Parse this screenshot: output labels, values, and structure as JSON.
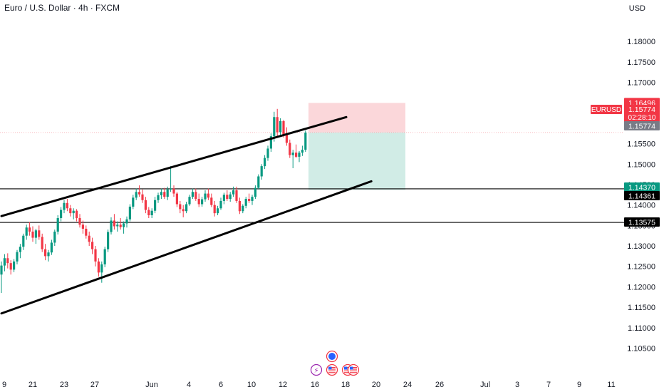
{
  "header": {
    "title": "Euro / U.S. Dollar · 4h · FXCM",
    "currency": "USD"
  },
  "price_axis": {
    "ticks": [
      "1.18000",
      "1.17500",
      "1.17000",
      "1.16500",
      "1.16000",
      "1.15500",
      "1.15000",
      "1.14500",
      "1.14000",
      "1.13500",
      "1.13000",
      "1.12500",
      "1.12000",
      "1.11500",
      "1.11000",
      "1.10500"
    ],
    "tick_values": [
      1.18,
      1.175,
      1.17,
      1.165,
      1.16,
      1.155,
      1.15,
      1.145,
      1.14,
      1.135,
      1.13,
      1.125,
      1.12,
      1.115,
      1.11,
      1.105
    ]
  },
  "time_axis": {
    "labels": [
      "9",
      "21",
      "23",
      "27",
      "Jun",
      "4",
      "6",
      "10",
      "12",
      "16",
      "18",
      "20",
      "24",
      "26",
      "Jul",
      "3",
      "7",
      "9",
      "11"
    ]
  },
  "symbol_label": "EURUSD",
  "price_labels": {
    "target": "1.16496",
    "last_price": "1.15774",
    "countdown": "02:28:10",
    "entry": "1.15774",
    "stop_level": "1.14370",
    "support_1": "1.14361",
    "support_2": "1.13575"
  },
  "colors": {
    "up": "#089981",
    "down": "#f23645",
    "profit_zone": "#d1ece6",
    "loss_zone": "#fbd7da",
    "grid_text": "#131722",
    "label_green": "#089981",
    "label_red": "#f23645",
    "label_black": "#000000",
    "label_gray": "#787b86"
  },
  "chart_data": {
    "type": "candlestick",
    "symbol": "EURUSD",
    "timeframe": "4h",
    "ylim": [
      1.103,
      1.1835
    ],
    "trendlines": [
      {
        "name": "channel-upper",
        "points": [
          [
            0,
            1.1373
          ],
          [
            110,
            1.1615
          ]
        ]
      },
      {
        "name": "channel-lower",
        "points": [
          [
            0,
            1.1135
          ],
          [
            118,
            1.1458
          ]
        ]
      }
    ],
    "horizontal_lines": [
      1.14361,
      1.13575
    ],
    "position": {
      "entry": 1.15774,
      "target": 1.16496,
      "stop": 1.1437
    },
    "candles": [
      [
        1.123,
        1.1262,
        1.1185,
        1.1252
      ],
      [
        1.1252,
        1.128,
        1.1238,
        1.127
      ],
      [
        1.127,
        1.1282,
        1.1245,
        1.1258
      ],
      [
        1.1258,
        1.1265,
        1.123,
        1.1242
      ],
      [
        1.1242,
        1.1268,
        1.1236,
        1.1262
      ],
      [
        1.1262,
        1.129,
        1.1255,
        1.1285
      ],
      [
        1.1285,
        1.1305,
        1.127,
        1.1298
      ],
      [
        1.1298,
        1.133,
        1.129,
        1.1325
      ],
      [
        1.1325,
        1.1352,
        1.1315,
        1.1345
      ],
      [
        1.1345,
        1.1358,
        1.1325,
        1.1335
      ],
      [
        1.1335,
        1.1348,
        1.131,
        1.132
      ],
      [
        1.132,
        1.1342,
        1.1305,
        1.1338
      ],
      [
        1.1338,
        1.135,
        1.1315,
        1.1322
      ],
      [
        1.1322,
        1.133,
        1.1285,
        1.1292
      ],
      [
        1.1292,
        1.1305,
        1.1265,
        1.1275
      ],
      [
        1.1275,
        1.129,
        1.1262,
        1.1284
      ],
      [
        1.1284,
        1.1315,
        1.1278,
        1.1308
      ],
      [
        1.1308,
        1.134,
        1.13,
        1.1335
      ],
      [
        1.1335,
        1.1375,
        1.1328,
        1.1368
      ],
      [
        1.1368,
        1.1395,
        1.136,
        1.1388
      ],
      [
        1.1388,
        1.1412,
        1.138,
        1.1405
      ],
      [
        1.1405,
        1.1415,
        1.1385,
        1.1392
      ],
      [
        1.1392,
        1.14,
        1.1372,
        1.138
      ],
      [
        1.138,
        1.1392,
        1.1365,
        1.1386
      ],
      [
        1.1386,
        1.139,
        1.136,
        1.1368
      ],
      [
        1.1368,
        1.1378,
        1.1345,
        1.1352
      ],
      [
        1.1352,
        1.1362,
        1.133,
        1.1342
      ],
      [
        1.1342,
        1.135,
        1.1318,
        1.1325
      ],
      [
        1.1325,
        1.1335,
        1.13,
        1.131
      ],
      [
        1.131,
        1.132,
        1.128,
        1.1292
      ],
      [
        1.1292,
        1.13,
        1.125,
        1.1262
      ],
      [
        1.1262,
        1.127,
        1.1225,
        1.1235
      ],
      [
        1.1235,
        1.1262,
        1.121,
        1.1255
      ],
      [
        1.1255,
        1.1298,
        1.1248,
        1.1292
      ],
      [
        1.1292,
        1.134,
        1.1285,
        1.1334
      ],
      [
        1.1334,
        1.137,
        1.1328,
        1.1362
      ],
      [
        1.1362,
        1.1378,
        1.134,
        1.1348
      ],
      [
        1.1348,
        1.136,
        1.1335,
        1.1352
      ],
      [
        1.1352,
        1.1368,
        1.134,
        1.1346
      ],
      [
        1.1346,
        1.136,
        1.133,
        1.1355
      ],
      [
        1.1355,
        1.1372,
        1.1345,
        1.1365
      ],
      [
        1.1365,
        1.1402,
        1.136,
        1.1396
      ],
      [
        1.1396,
        1.1425,
        1.139,
        1.1418
      ],
      [
        1.1418,
        1.144,
        1.1412,
        1.1432
      ],
      [
        1.1432,
        1.1448,
        1.142,
        1.1426
      ],
      [
        1.1426,
        1.1438,
        1.1405,
        1.1412
      ],
      [
        1.1412,
        1.142,
        1.138,
        1.1388
      ],
      [
        1.1388,
        1.1395,
        1.1368,
        1.1375
      ],
      [
        1.1375,
        1.1392,
        1.1368,
        1.1386
      ],
      [
        1.1386,
        1.142,
        1.138,
        1.1412
      ],
      [
        1.1412,
        1.143,
        1.1405,
        1.1424
      ],
      [
        1.1424,
        1.144,
        1.1415,
        1.1432
      ],
      [
        1.1432,
        1.1442,
        1.1415,
        1.142
      ],
      [
        1.142,
        1.1445,
        1.1412,
        1.1438
      ],
      [
        1.1438,
        1.1495,
        1.1432,
        1.144
      ],
      [
        1.144,
        1.1448,
        1.142,
        1.1428
      ],
      [
        1.1428,
        1.1432,
        1.1395,
        1.1402
      ],
      [
        1.1402,
        1.141,
        1.138,
        1.139
      ],
      [
        1.139,
        1.14,
        1.137,
        1.1385
      ],
      [
        1.1385,
        1.1408,
        1.138,
        1.1402
      ],
      [
        1.1402,
        1.1425,
        1.1398,
        1.142
      ],
      [
        1.142,
        1.144,
        1.1415,
        1.1432
      ],
      [
        1.1432,
        1.144,
        1.141,
        1.1415
      ],
      [
        1.1415,
        1.1428,
        1.1395,
        1.1402
      ],
      [
        1.1402,
        1.142,
        1.1396,
        1.1414
      ],
      [
        1.1414,
        1.1436,
        1.1408,
        1.1428
      ],
      [
        1.1428,
        1.144,
        1.1412,
        1.1418
      ],
      [
        1.1418,
        1.1428,
        1.1395,
        1.14
      ],
      [
        1.14,
        1.141,
        1.1372,
        1.138
      ],
      [
        1.138,
        1.1398,
        1.1375,
        1.1392
      ],
      [
        1.1392,
        1.1418,
        1.1388,
        1.141
      ],
      [
        1.141,
        1.143,
        1.1402,
        1.1425
      ],
      [
        1.1425,
        1.1436,
        1.141,
        1.1415
      ],
      [
        1.1415,
        1.1432,
        1.1408,
        1.1426
      ],
      [
        1.1426,
        1.1445,
        1.142,
        1.1436
      ],
      [
        1.1436,
        1.1445,
        1.1405,
        1.141
      ],
      [
        1.141,
        1.1418,
        1.1378,
        1.1385
      ],
      [
        1.1385,
        1.1402,
        1.138,
        1.1398
      ],
      [
        1.1398,
        1.142,
        1.1392,
        1.1415
      ],
      [
        1.1415,
        1.1428,
        1.1405,
        1.141
      ],
      [
        1.141,
        1.1425,
        1.14,
        1.142
      ],
      [
        1.142,
        1.1448,
        1.1415,
        1.1442
      ],
      [
        1.1442,
        1.1475,
        1.1438,
        1.147
      ],
      [
        1.147,
        1.15,
        1.1462,
        1.1495
      ],
      [
        1.1495,
        1.1522,
        1.1488,
        1.1515
      ],
      [
        1.1515,
        1.1545,
        1.1508,
        1.1538
      ],
      [
        1.1538,
        1.1575,
        1.153,
        1.1568
      ],
      [
        1.1568,
        1.1628,
        1.1555,
        1.1615
      ],
      [
        1.1615,
        1.1635,
        1.1565,
        1.1578
      ],
      [
        1.1578,
        1.1612,
        1.157,
        1.1605
      ],
      [
        1.1605,
        1.1608,
        1.1565,
        1.1572
      ],
      [
        1.1572,
        1.159,
        1.1545,
        1.1552
      ],
      [
        1.1552,
        1.156,
        1.1515,
        1.1522
      ],
      [
        1.1522,
        1.1535,
        1.149,
        1.1528
      ],
      [
        1.1528,
        1.1548,
        1.1515,
        1.1518
      ],
      [
        1.1518,
        1.1532,
        1.1505,
        1.1528
      ],
      [
        1.1528,
        1.1545,
        1.152,
        1.1535
      ],
      [
        1.1535,
        1.1582,
        1.153,
        1.1577
      ]
    ]
  },
  "events": [
    "calendar-event-icon",
    "flash-icon",
    "us-flag-icon",
    "us-flag-icon"
  ]
}
